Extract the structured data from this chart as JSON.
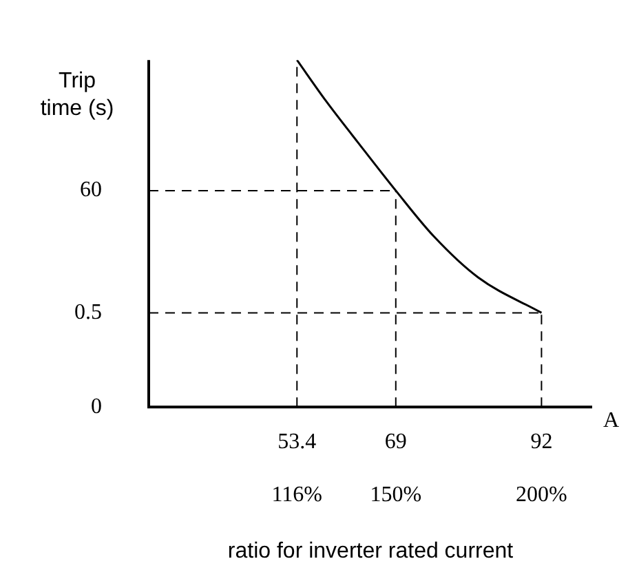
{
  "chart_data": {
    "type": "line",
    "xlabel": "ratio for inverter rated current",
    "ylabel": "Trip time (s)",
    "x": [
      53.4,
      58,
      63,
      69,
      75,
      82,
      92
    ],
    "series": [
      {
        "color": "#000000",
        "values": [
          10000,
          2000,
          400,
          60,
          10,
          2,
          0.5
        ]
      }
    ],
    "log": "y",
    "xlim": [
      30,
      100
    ],
    "ylim": [
      0,
      10000
    ],
    "xticks": [
      53.4,
      69,
      92
    ],
    "yticks": [
      0,
      0.5,
      60
    ],
    "ref_lines": [
      {
        "axis": "x",
        "value": 53.4,
        "line_style": "dashed"
      },
      {
        "axis": "x",
        "value": 69,
        "line_style": "dashed"
      },
      {
        "axis": "x",
        "value": 92,
        "line_style": "dashed"
      },
      {
        "axis": "y",
        "value": 60,
        "line_style": "dashed"
      },
      {
        "axis": "y",
        "value": 0.5,
        "line_style": "dashed"
      }
    ],
    "annotations": [
      "116%",
      "150%",
      "200%",
      "A"
    ],
    "grid": false,
    "legend": false,
    "marker": "none",
    "line_style": "solid"
  }
}
